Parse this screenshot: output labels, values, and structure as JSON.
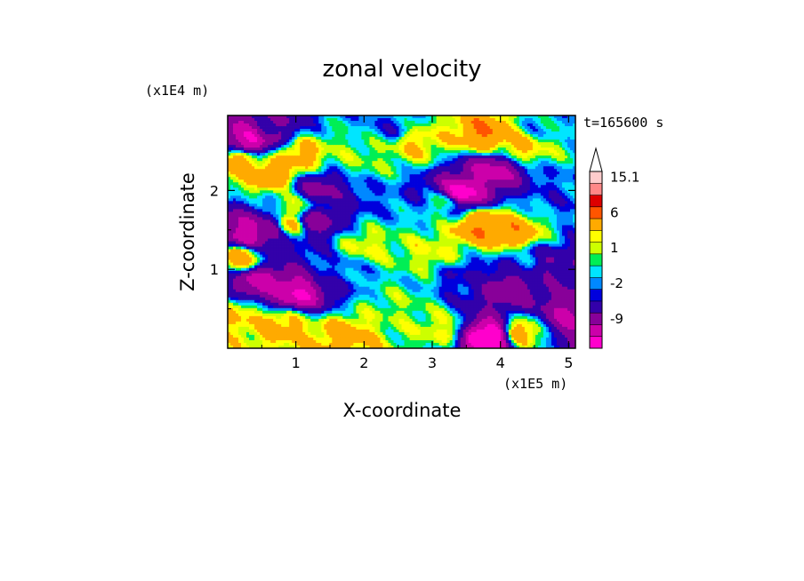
{
  "chart_data": {
    "type": "heatmap",
    "title": "zonal velocity",
    "xlabel": "X-coordinate",
    "ylabel": "Z-coordinate",
    "x_unit": "(x1E5 m)",
    "y_unit": "(x1E4 m)",
    "time_label": "t=165600 s",
    "xlim": [
      0.0,
      5.1
    ],
    "ylim": [
      0.0,
      2.95
    ],
    "x_ticks": [
      "1",
      "2",
      "3",
      "4",
      "5"
    ],
    "y_ticks": [
      "1",
      "2"
    ],
    "colorbar": {
      "levels": [
        -15,
        -12,
        -9,
        -6,
        -3,
        -2,
        -1,
        0,
        1,
        2,
        3,
        6,
        9,
        12,
        15.1
      ],
      "labels": [
        "15.1",
        "6",
        "1",
        "-2",
        "-9"
      ],
      "colors": [
        "#ff00cc",
        "#cc00aa",
        "#880099",
        "#3300aa",
        "#0000dd",
        "#0088ff",
        "#00e5ff",
        "#00ee55",
        "#ccff00",
        "#ffff00",
        "#ffaa00",
        "#ff5500",
        "#dd0000",
        "#ff8888",
        "#ffcccc"
      ]
    },
    "features": [
      {
        "x": 0.35,
        "z": 2.65,
        "u": -12
      },
      {
        "x": 0.6,
        "z": 2.75,
        "u": -6
      },
      {
        "x": 0.2,
        "z": 2.35,
        "u": 4
      },
      {
        "x": 0.65,
        "z": 2.2,
        "u": 5
      },
      {
        "x": 1.05,
        "z": 2.45,
        "u": 4
      },
      {
        "x": 1.3,
        "z": 2.0,
        "u": -7
      },
      {
        "x": 1.0,
        "z": 1.8,
        "u": 2
      },
      {
        "x": 0.3,
        "z": 1.45,
        "u": -11
      },
      {
        "x": 0.6,
        "z": 1.5,
        "u": -9
      },
      {
        "x": 0.9,
        "z": 1.55,
        "u": 4
      },
      {
        "x": 1.25,
        "z": 1.6,
        "u": -8
      },
      {
        "x": 0.2,
        "z": 1.15,
        "u": 4
      },
      {
        "x": 0.45,
        "z": 0.85,
        "u": -10
      },
      {
        "x": 1.0,
        "z": 0.7,
        "u": -12
      },
      {
        "x": 0.8,
        "z": 0.3,
        "u": 4
      },
      {
        "x": 0.15,
        "z": 0.4,
        "u": 3
      },
      {
        "x": 1.6,
        "z": 1.0,
        "u": -2
      },
      {
        "x": 1.7,
        "z": 0.15,
        "u": 4
      },
      {
        "x": 2.0,
        "z": 1.3,
        "u": 2
      },
      {
        "x": 2.4,
        "z": 2.8,
        "u": -2
      },
      {
        "x": 2.0,
        "z": 2.45,
        "u": 1
      },
      {
        "x": 2.75,
        "z": 2.6,
        "u": 3
      },
      {
        "x": 3.0,
        "z": 1.2,
        "u": 2
      },
      {
        "x": 3.2,
        "z": 1.85,
        "u": 1
      },
      {
        "x": 3.4,
        "z": 1.95,
        "u": -14
      },
      {
        "x": 3.9,
        "z": 2.25,
        "u": -10
      },
      {
        "x": 3.8,
        "z": 2.7,
        "u": 6
      },
      {
        "x": 4.3,
        "z": 2.55,
        "u": 3
      },
      {
        "x": 4.6,
        "z": 2.85,
        "u": -1
      },
      {
        "x": 3.7,
        "z": 1.55,
        "u": 6
      },
      {
        "x": 4.2,
        "z": 1.45,
        "u": 5
      },
      {
        "x": 4.4,
        "z": 1.1,
        "u": -2
      },
      {
        "x": 4.7,
        "z": 1.05,
        "u": -6
      },
      {
        "x": 4.8,
        "z": 1.9,
        "u": -2
      },
      {
        "x": 3.5,
        "z": 0.9,
        "u": -3
      },
      {
        "x": 4.1,
        "z": 0.75,
        "u": -8
      },
      {
        "x": 3.85,
        "z": 0.15,
        "u": -15
      },
      {
        "x": 4.3,
        "z": 0.2,
        "u": 4
      },
      {
        "x": 2.5,
        "z": 0.5,
        "u": 1
      },
      {
        "x": 3.1,
        "z": 0.25,
        "u": 2
      },
      {
        "x": 5.0,
        "z": 0.4,
        "u": -9
      }
    ]
  }
}
